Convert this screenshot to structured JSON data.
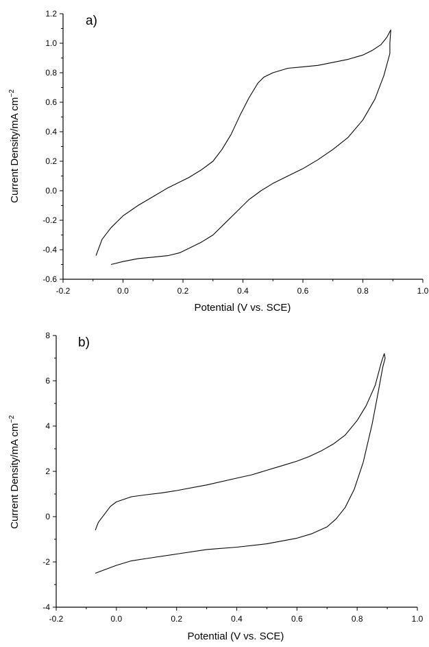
{
  "chart_data": [
    {
      "type": "line",
      "panel_label": "a)",
      "xlabel": "Potential (V vs. SCE)",
      "ylabel_main": "Current Density/mA cm",
      "ylabel_sup": "−2",
      "xlim": [
        -0.2,
        1.0
      ],
      "ylim": [
        -0.6,
        1.2
      ],
      "xticks": [
        -0.2,
        0.0,
        0.2,
        0.4,
        0.6,
        0.8,
        1.0
      ],
      "xtick_labels": [
        "-0.2",
        "0.0",
        "0.2",
        "0.4",
        "0.6",
        "0.8",
        "1.0"
      ],
      "yticks": [
        -0.6,
        -0.4,
        -0.2,
        0.0,
        0.2,
        0.4,
        0.6,
        0.8,
        1.0,
        1.2
      ],
      "ytick_labels": [
        "-0.6",
        "-0.4",
        "-0.2",
        "0.0",
        "0.2",
        "0.4",
        "0.6",
        "0.8",
        "1.0",
        "1.2"
      ],
      "grid": false,
      "series": [
        {
          "x": [
            -0.04,
            0.0,
            0.05,
            0.1,
            0.15,
            0.19,
            0.22,
            0.26,
            0.3,
            0.34,
            0.38,
            0.42,
            0.46,
            0.5,
            0.55,
            0.6,
            0.65,
            0.7,
            0.75,
            0.8,
            0.84,
            0.87,
            0.89,
            0.89,
            0.893,
            0.88,
            0.86,
            0.83,
            0.8,
            0.75,
            0.7,
            0.65,
            0.6,
            0.55,
            0.5,
            0.47,
            0.45,
            0.42,
            0.39,
            0.36,
            0.33,
            0.3,
            0.26,
            0.22,
            0.19,
            0.15,
            0.1,
            0.05,
            0.0,
            -0.04,
            -0.07,
            -0.09
          ],
          "y": [
            -0.5,
            -0.48,
            -0.46,
            -0.45,
            -0.44,
            -0.42,
            -0.39,
            -0.35,
            -0.3,
            -0.22,
            -0.14,
            -0.06,
            0.0,
            0.05,
            0.1,
            0.15,
            0.21,
            0.28,
            0.36,
            0.48,
            0.62,
            0.78,
            0.93,
            1.0,
            1.09,
            1.04,
            0.99,
            0.95,
            0.92,
            0.89,
            0.87,
            0.85,
            0.84,
            0.83,
            0.8,
            0.77,
            0.73,
            0.63,
            0.51,
            0.38,
            0.28,
            0.2,
            0.14,
            0.09,
            0.06,
            0.02,
            -0.04,
            -0.1,
            -0.17,
            -0.25,
            -0.33,
            -0.44
          ]
        }
      ]
    },
    {
      "type": "line",
      "panel_label": "b)",
      "xlabel": "Potential (V vs. SCE)",
      "ylabel_main": "Current Density/mA cm",
      "ylabel_sup": "−2",
      "xlim": [
        -0.2,
        1.0
      ],
      "ylim": [
        -4,
        8
      ],
      "xticks": [
        -0.2,
        0.0,
        0.2,
        0.4,
        0.6,
        0.8,
        1.0
      ],
      "xtick_labels": [
        "-0.2",
        "0.0",
        "0.2",
        "0.4",
        "0.6",
        "0.8",
        "1.0"
      ],
      "yticks": [
        -4,
        -2,
        0,
        2,
        4,
        6,
        8
      ],
      "ytick_labels": [
        "-4",
        "-2",
        "0",
        "2",
        "4",
        "6",
        "8"
      ],
      "grid": false,
      "series": [
        {
          "x": [
            -0.07,
            -0.04,
            0.0,
            0.05,
            0.1,
            0.2,
            0.3,
            0.4,
            0.5,
            0.6,
            0.65,
            0.7,
            0.73,
            0.76,
            0.79,
            0.82,
            0.85,
            0.87,
            0.885,
            0.893,
            0.89,
            0.88,
            0.86,
            0.83,
            0.8,
            0.76,
            0.72,
            0.68,
            0.64,
            0.6,
            0.55,
            0.5,
            0.45,
            0.4,
            0.3,
            0.2,
            0.15,
            0.1,
            0.05,
            0.0,
            -0.02,
            -0.04,
            -0.06,
            -0.07
          ],
          "y": [
            -2.5,
            -2.35,
            -2.15,
            -1.95,
            -1.85,
            -1.65,
            -1.45,
            -1.35,
            -1.2,
            -0.95,
            -0.75,
            -0.45,
            -0.1,
            0.4,
            1.2,
            2.4,
            4.1,
            5.5,
            6.6,
            7.0,
            7.2,
            6.8,
            5.8,
            4.9,
            4.25,
            3.6,
            3.2,
            2.9,
            2.65,
            2.45,
            2.25,
            2.05,
            1.85,
            1.7,
            1.4,
            1.15,
            1.05,
            0.97,
            0.88,
            0.65,
            0.45,
            0.1,
            -0.25,
            -0.6
          ]
        }
      ]
    }
  ]
}
